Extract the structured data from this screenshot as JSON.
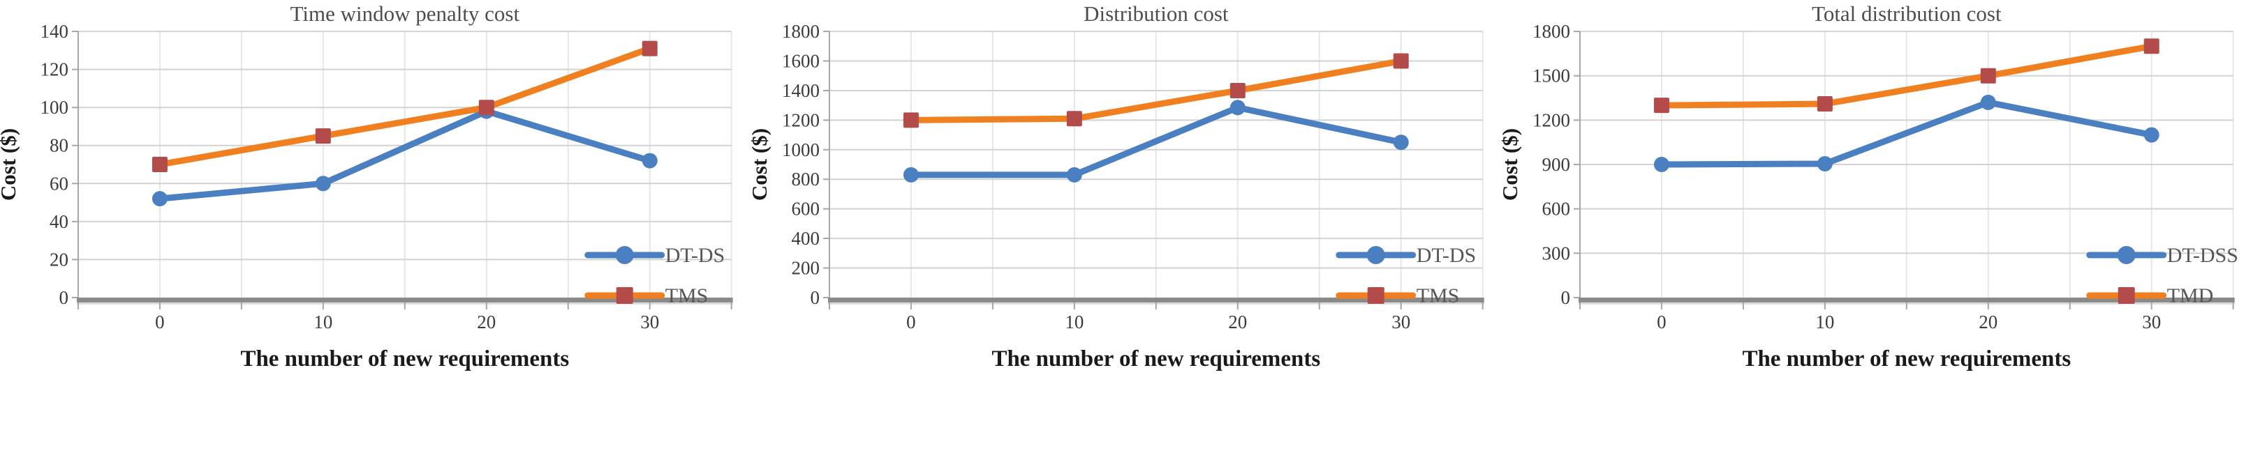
{
  "figure": {
    "background": "#ffffff",
    "colors": {
      "blue_series": "#4a7fc1",
      "orange_series": "#f0801f",
      "dark_red_marker": "#b34b4b",
      "grid_horizontal": "#d2d2d2",
      "grid_vertical": "#e6e6e6",
      "axis_line": "#a6a6a6",
      "axis_baseline": "#8a8a8a",
      "title_text": "#4d4d4d",
      "tick_text": "#3b3b3b",
      "legend_text": "#575757",
      "axis_title_text": "#1a1a1a"
    }
  },
  "chart_data": [
    {
      "type": "line",
      "title": "Time window penalty cost",
      "xlabel": "The number of new requirements",
      "ylabel": "Cost ($)",
      "categories": [
        "0",
        "10",
        "20",
        "30"
      ],
      "ylim": [
        0,
        140
      ],
      "yticks": [
        0,
        20,
        40,
        60,
        80,
        100,
        120,
        140
      ],
      "grid": true,
      "legend_position": "lower-right",
      "series": [
        {
          "name": "DT-DS",
          "marker": "circle",
          "color": "#4a7fc1",
          "marker_color": "#4a7fc1",
          "values": [
            52,
            60,
            98,
            72
          ]
        },
        {
          "name": "TMS",
          "marker": "square",
          "color": "#f0801f",
          "marker_color": "#b34b4b",
          "values": [
            70,
            85,
            100,
            131
          ]
        }
      ]
    },
    {
      "type": "line",
      "title": "Distribution cost",
      "xlabel": "The number of new requirements",
      "ylabel": "Cost ($)",
      "categories": [
        "0",
        "10",
        "20",
        "30"
      ],
      "ylim": [
        0,
        1800
      ],
      "yticks": [
        0,
        200,
        400,
        600,
        800,
        1000,
        1200,
        1400,
        1600,
        1800
      ],
      "grid": true,
      "legend_position": "lower-right",
      "series": [
        {
          "name": "DT-DS",
          "marker": "circle",
          "color": "#4a7fc1",
          "marker_color": "#4a7fc1",
          "values": [
            830,
            830,
            1285,
            1050
          ]
        },
        {
          "name": "TMS",
          "marker": "square",
          "color": "#f0801f",
          "marker_color": "#b34b4b",
          "values": [
            1200,
            1210,
            1400,
            1600
          ]
        }
      ]
    },
    {
      "type": "line",
      "title": "Total distribution cost",
      "xlabel": "The number of new requirements",
      "ylabel": "Cost ($)",
      "categories": [
        "0",
        "10",
        "20",
        "30"
      ],
      "ylim": [
        0,
        1800
      ],
      "yticks": [
        0,
        300,
        600,
        900,
        1200,
        1500,
        1800
      ],
      "grid": true,
      "legend_position": "lower-right",
      "series": [
        {
          "name": "DT-DSS",
          "marker": "circle",
          "color": "#4a7fc1",
          "marker_color": "#4a7fc1",
          "values": [
            900,
            905,
            1320,
            1100
          ]
        },
        {
          "name": "TMD",
          "marker": "square",
          "color": "#f0801f",
          "marker_color": "#b34b4b",
          "values": [
            1300,
            1310,
            1500,
            1700
          ]
        }
      ]
    }
  ]
}
